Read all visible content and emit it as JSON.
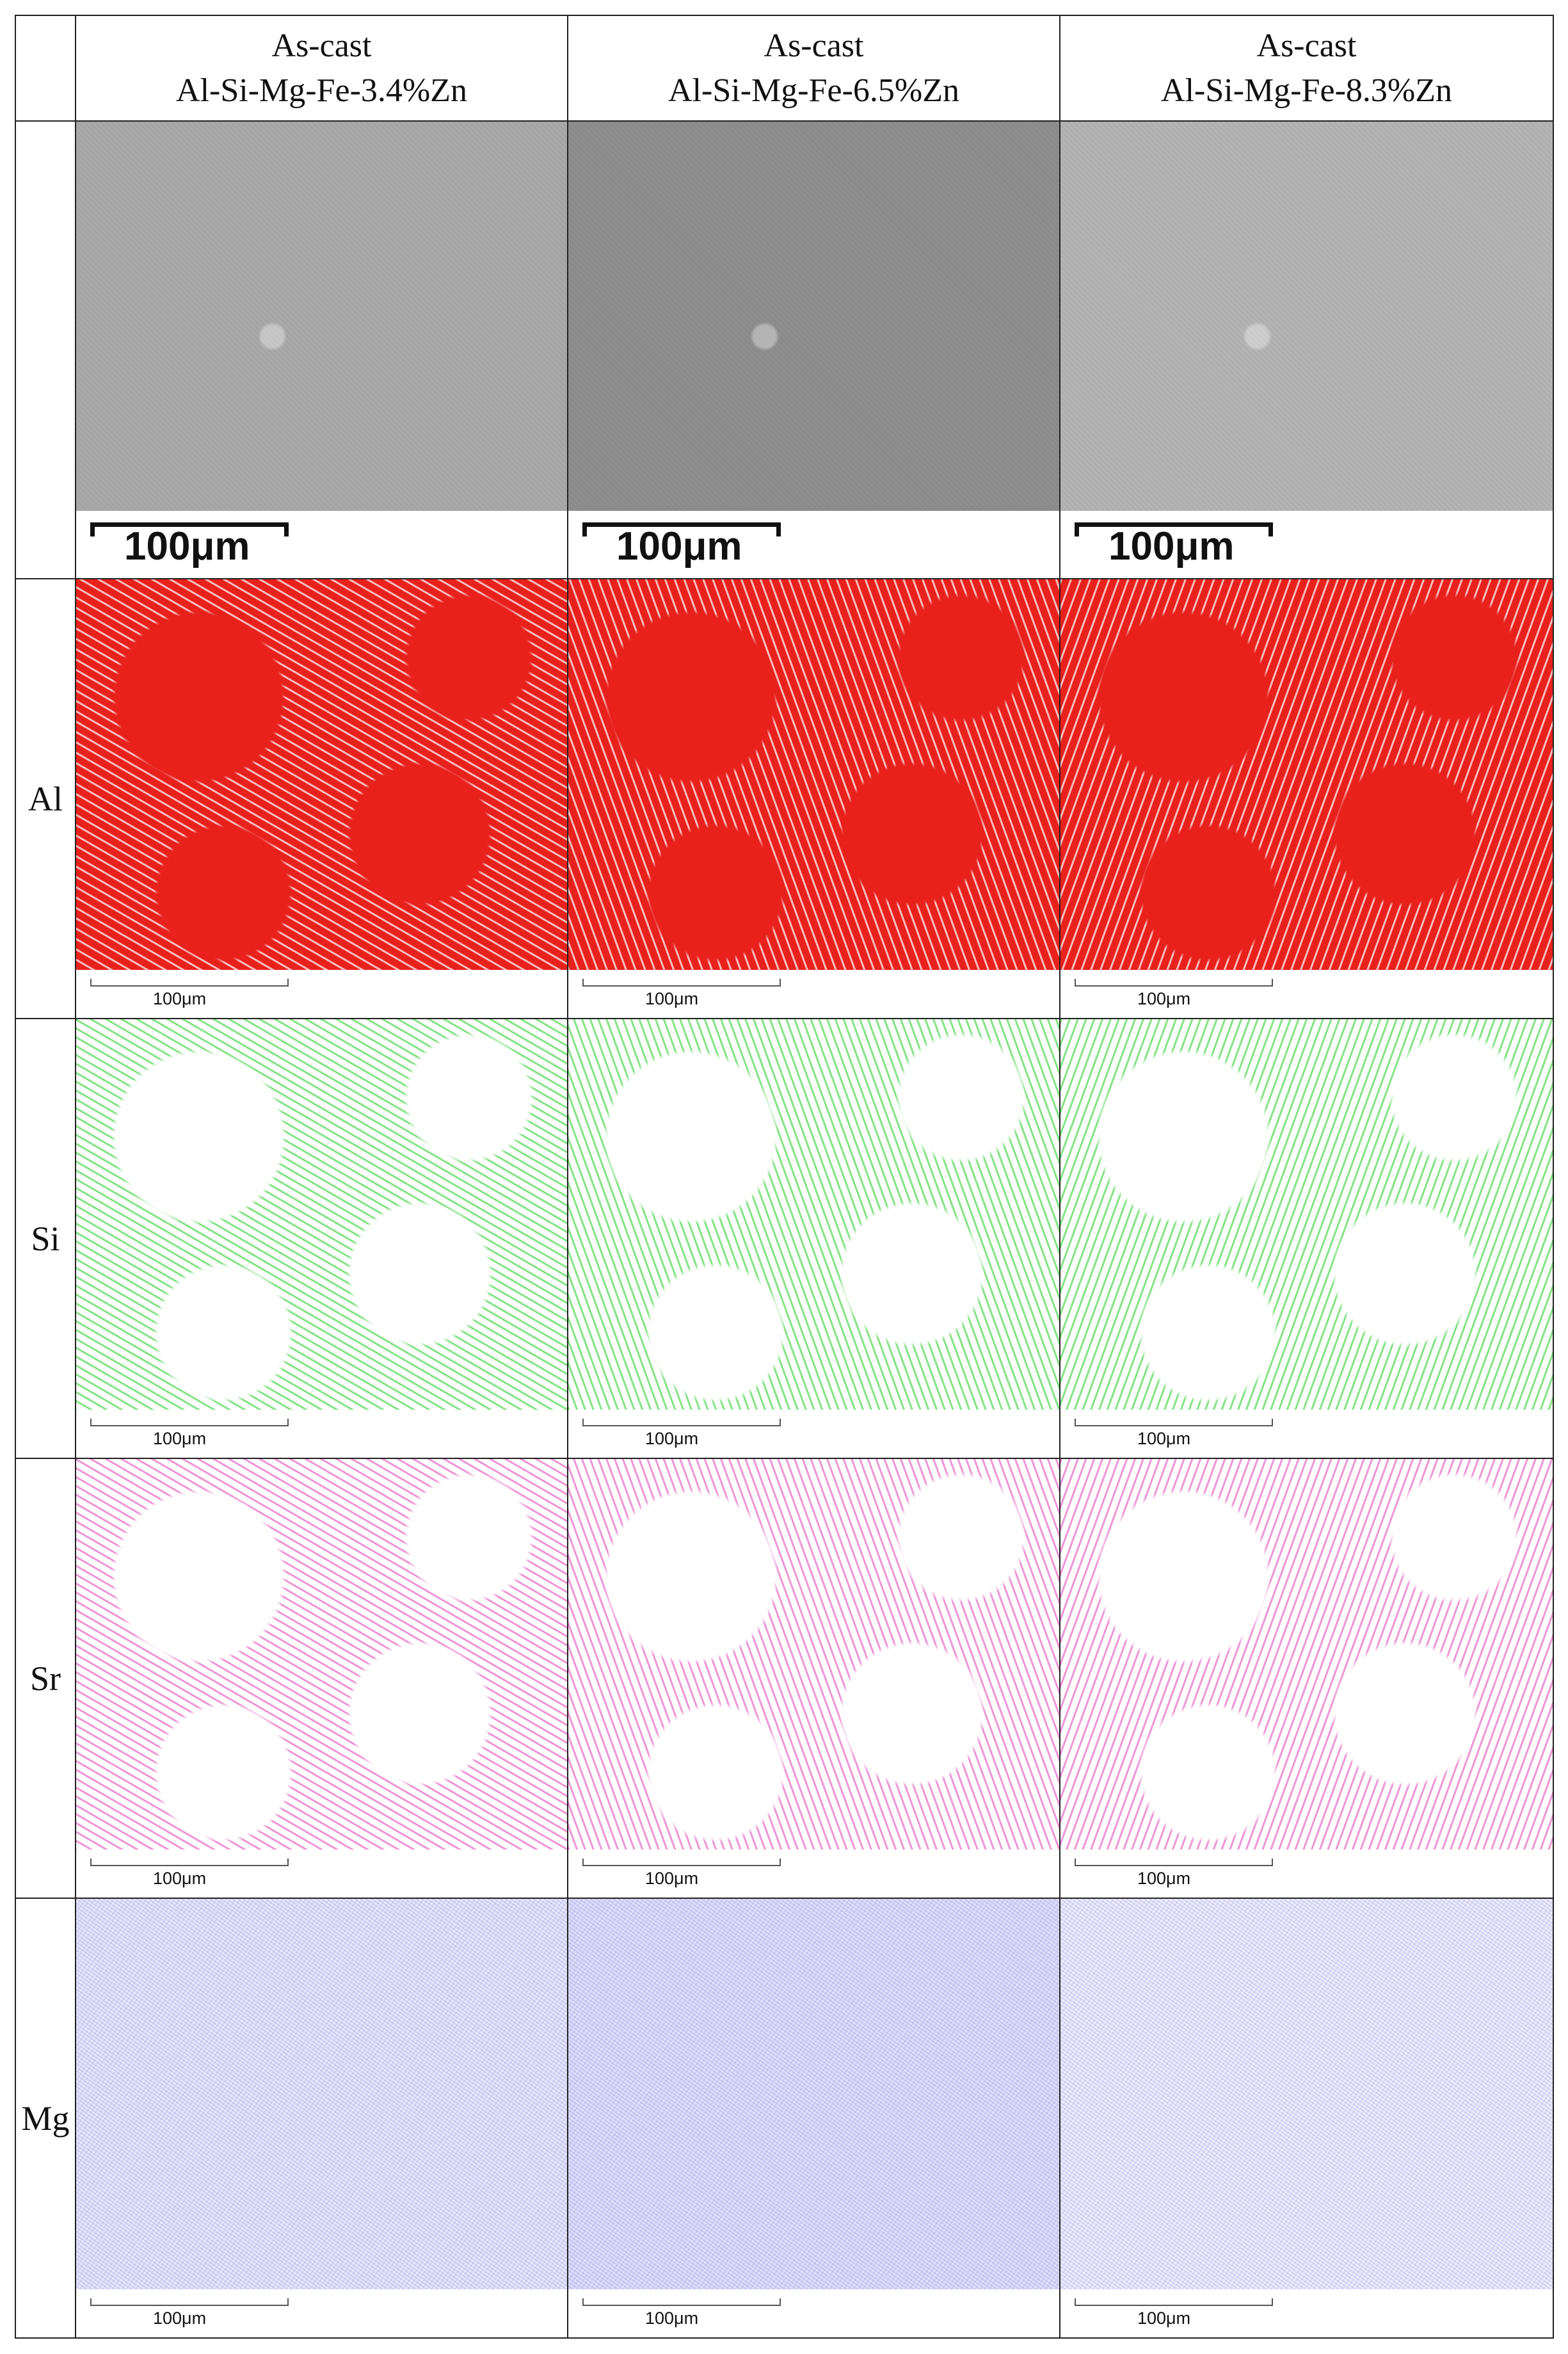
{
  "table": {
    "header": [
      {
        "line1": "As-cast",
        "line2": "Al-Si-Mg-Fe-3.4%Zn"
      },
      {
        "line1": "As-cast",
        "line2": "Al-Si-Mg-Fe-6.5%Zn"
      },
      {
        "line1": "As-cast",
        "line2": "Al-Si-Mg-Fe-8.3%Zn"
      }
    ],
    "rows": [
      {
        "color": "#9a9a9a",
        "scale_labels": [
          "100μm",
          "100μm",
          "100μm"
        ]
      },
      {
        "label": "Al",
        "color": "#e8211d",
        "scale_labels": [
          "100μm",
          "100μm",
          "100μm"
        ]
      },
      {
        "label": "Si",
        "color": "#22cc22",
        "scale_labels": [
          "100μm",
          "100μm",
          "100μm"
        ]
      },
      {
        "label": "Sr",
        "color": "#e040b8",
        "scale_labels": [
          "100μm",
          "100μm",
          "100μm"
        ]
      },
      {
        "label": "Mg",
        "color": "#6a6ae0",
        "scale_labels": [
          "100μm",
          "100μm",
          "100μm"
        ]
      }
    ]
  }
}
